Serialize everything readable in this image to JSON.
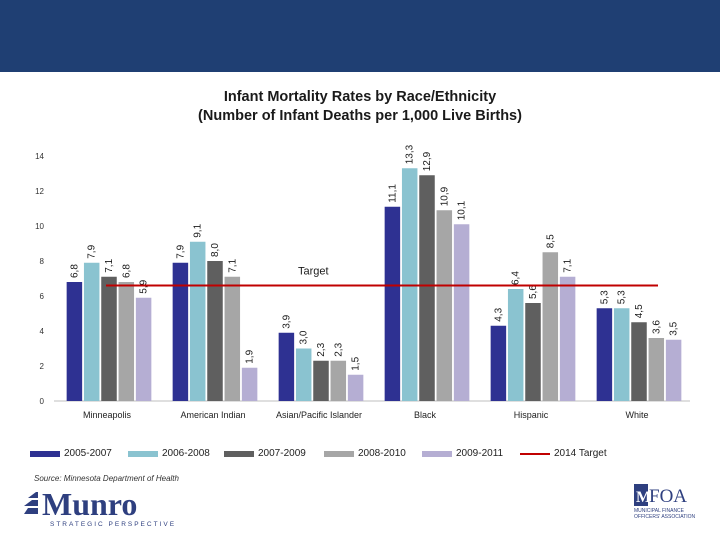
{
  "title_line1": "Infant Mortality Rates by Race/Ethnicity",
  "title_line2": "(Number of Infant Deaths per 1,000 Live Births)",
  "source": "Source: Minnesota Department of Health",
  "target_label": "Target",
  "logo_left": {
    "name": "Munro",
    "tagline": "STRATEGIC PERSPECTIVE"
  },
  "logo_right": {
    "name": "FOA",
    "subtitle": "MUNICIPAL FINANCE OFFICERS' ASSOCIATION"
  },
  "colors": {
    "band": "#1f3f73",
    "series": [
      "#2e3192",
      "#8ac3d0",
      "#5f5f5f",
      "#a6a6a6",
      "#b5aed3"
    ],
    "target": "#c00000",
    "munro": "#2e3f7f"
  },
  "chart_data": {
    "type": "bar",
    "title": "Infant Mortality Rates by Race/Ethnicity (Number of Infant Deaths per 1,000 Live Births)",
    "categories": [
      "Minneapolis",
      "American Indian",
      "Asian/Pacific Islander",
      "Black",
      "Hispanic",
      "White"
    ],
    "series": [
      {
        "name": "2005-2007",
        "values": [
          6.8,
          7.9,
          3.9,
          11.1,
          4.3,
          5.3
        ],
        "labels": [
          "6,8",
          "7,9",
          "3,9",
          "11,1",
          "4,3",
          "5,3"
        ]
      },
      {
        "name": "2006-2008",
        "values": [
          7.9,
          9.1,
          3.0,
          13.3,
          6.4,
          5.3
        ],
        "labels": [
          "7,9",
          "9,1",
          "3,0",
          "13,3",
          "6,4",
          "5,3"
        ]
      },
      {
        "name": "2007-2009",
        "values": [
          7.1,
          8.0,
          2.3,
          12.9,
          5.6,
          4.5
        ],
        "labels": [
          "7,1",
          "8,0",
          "2,3",
          "12,9",
          "5,6",
          "4,5"
        ]
      },
      {
        "name": "2008-2010",
        "values": [
          6.8,
          7.1,
          2.3,
          10.9,
          8.5,
          3.6
        ],
        "labels": [
          "6,8",
          "7,1",
          "2,3",
          "10,9",
          "8,5",
          "3,6"
        ]
      },
      {
        "name": "2009-2011",
        "values": [
          5.9,
          1.9,
          1.5,
          10.1,
          7.1,
          3.5
        ],
        "labels": [
          "5,9",
          "1,9",
          "1,5",
          "10,1",
          "7,1",
          "3,5"
        ]
      }
    ],
    "target": {
      "name": "2014 Target",
      "value": 6.6
    },
    "ylim": [
      0,
      14
    ],
    "yticks": [
      0,
      2,
      4,
      6,
      8,
      10,
      12,
      14
    ],
    "grid": false,
    "legend": "bottom"
  }
}
